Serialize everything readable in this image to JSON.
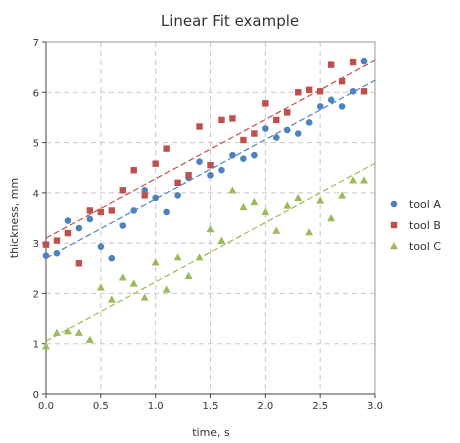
{
  "chart_data": {
    "type": "scatter",
    "title": "Linear Fit example",
    "xlabel": "time, s",
    "ylabel": "thickness, mm",
    "xlim": [
      0,
      3
    ],
    "ylim": [
      0,
      7
    ],
    "x_ticks": [
      "0.0",
      "0.5",
      "1.0",
      "1.5",
      "2.0",
      "2.5",
      "3.0"
    ],
    "y_ticks": [
      "0",
      "1",
      "2",
      "3",
      "4",
      "5",
      "6",
      "7"
    ],
    "grid": true,
    "legend_position": "right",
    "series": [
      {
        "name": "tool A",
        "marker": "circle",
        "color": "#4f81bd",
        "x": [
          0.0,
          0.1,
          0.2,
          0.3,
          0.4,
          0.5,
          0.6,
          0.7,
          0.8,
          0.9,
          1.0,
          1.1,
          1.2,
          1.3,
          1.4,
          1.5,
          1.6,
          1.7,
          1.8,
          1.9,
          2.0,
          2.1,
          2.2,
          2.3,
          2.4,
          2.5,
          2.6,
          2.7,
          2.8,
          2.9
        ],
        "y": [
          2.75,
          2.8,
          3.45,
          3.3,
          3.48,
          2.93,
          2.7,
          3.35,
          3.65,
          4.05,
          3.9,
          3.62,
          3.95,
          4.3,
          4.62,
          4.35,
          4.45,
          4.75,
          4.68,
          4.75,
          5.28,
          5.1,
          5.25,
          5.18,
          5.4,
          5.72,
          5.85,
          5.72,
          6.02,
          6.62
        ],
        "fit": {
          "intercept": 2.7,
          "slope": 1.18
        }
      },
      {
        "name": "tool B",
        "marker": "square",
        "color": "#c0504d",
        "x": [
          0.0,
          0.1,
          0.2,
          0.3,
          0.4,
          0.5,
          0.6,
          0.7,
          0.8,
          0.9,
          1.0,
          1.1,
          1.2,
          1.3,
          1.4,
          1.5,
          1.6,
          1.7,
          1.8,
          1.9,
          2.0,
          2.1,
          2.2,
          2.3,
          2.4,
          2.5,
          2.6,
          2.7,
          2.8,
          2.9
        ],
        "y": [
          2.97,
          3.05,
          3.2,
          2.6,
          3.65,
          3.62,
          3.65,
          4.05,
          4.45,
          3.95,
          4.58,
          4.88,
          4.2,
          4.35,
          5.32,
          4.55,
          5.45,
          5.48,
          5.05,
          5.18,
          5.78,
          5.45,
          5.6,
          6.0,
          6.05,
          6.02,
          6.55,
          6.22,
          6.6,
          6.02
        ],
        "fit": {
          "intercept": 3.1,
          "slope": 1.18
        }
      },
      {
        "name": "tool C",
        "marker": "triangle",
        "color": "#9bbb59",
        "x": [
          0.0,
          0.1,
          0.2,
          0.3,
          0.4,
          0.5,
          0.6,
          0.7,
          0.8,
          0.9,
          1.0,
          1.1,
          1.2,
          1.3,
          1.4,
          1.5,
          1.6,
          1.7,
          1.8,
          1.9,
          2.0,
          2.1,
          2.2,
          2.3,
          2.4,
          2.5,
          2.6,
          2.7,
          2.8,
          2.9
        ],
        "y": [
          0.95,
          1.22,
          1.25,
          1.22,
          1.08,
          2.12,
          1.88,
          2.32,
          2.2,
          1.92,
          2.62,
          2.08,
          2.72,
          2.35,
          2.72,
          3.28,
          3.05,
          4.05,
          3.72,
          3.82,
          3.62,
          3.25,
          3.75,
          3.9,
          3.22,
          3.85,
          3.5,
          3.95,
          4.25,
          4.25
        ],
        "fit": {
          "intercept": 1.05,
          "slope": 1.18
        }
      }
    ]
  }
}
